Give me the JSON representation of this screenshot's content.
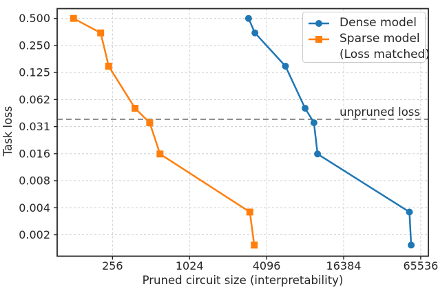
{
  "chart_data": {
    "type": "line",
    "title": "",
    "xlabel": "Pruned circuit size (interpretability)",
    "ylabel": "Task loss",
    "xscale": "log",
    "yscale": "log",
    "xlim": [
      94.6,
      75200
    ],
    "ylim": [
      0.001129,
      0.6426
    ],
    "grid": true,
    "x_ticks": {
      "values": [
        256,
        1024,
        4096,
        16384,
        65536
      ],
      "labels": [
        "256",
        "1024",
        "4096",
        "16384",
        "65536"
      ]
    },
    "y_ticks": {
      "values": [
        0.5,
        0.25,
        0.125,
        0.0625,
        0.03125,
        0.015625,
        0.0078125,
        0.00390625,
        0.001953125
      ],
      "labels": [
        "0.500",
        "0.250",
        "0.125",
        "0.062",
        "0.031",
        "0.016",
        "0.008",
        "0.004",
        "0.002"
      ]
    },
    "series": [
      {
        "name": "Dense model",
        "marker": "circle",
        "color": "#1f77b4",
        "x": [
          2960,
          3320,
          5750,
          8190,
          9600,
          10240,
          53500,
          55200
        ],
        "y": [
          0.5,
          0.345,
          0.147,
          0.05,
          0.0345,
          0.0155,
          0.0035,
          0.0015
        ]
      },
      {
        "name": "Sparse model (Loss matched)",
        "marker": "square",
        "color": "#ff7f0e",
        "x": [
          127,
          207,
          239,
          384,
          500,
          602,
          3030,
          3280
        ],
        "y": [
          0.5,
          0.345,
          0.147,
          0.05,
          0.0345,
          0.0155,
          0.0035,
          0.0015
        ]
      }
    ],
    "reference_line": {
      "value": 0.0377,
      "style": "dashed",
      "color": "#7f7f7f"
    },
    "annotation": {
      "text": "unpruned loss",
      "color": "#8f8f8f"
    },
    "legend": {
      "position": "upper right",
      "entries": [
        {
          "label": "Dense model",
          "sublabel": ""
        },
        {
          "label": "Sparse model",
          "sublabel": "(Loss matched)"
        }
      ]
    },
    "colors": {
      "dense": "#1f77b4",
      "sparse": "#ff7f0e",
      "grid": "#cccccc",
      "spine": "#262626",
      "reference": "#7f7f7f",
      "annotation_text": "#8f8f8f"
    }
  }
}
